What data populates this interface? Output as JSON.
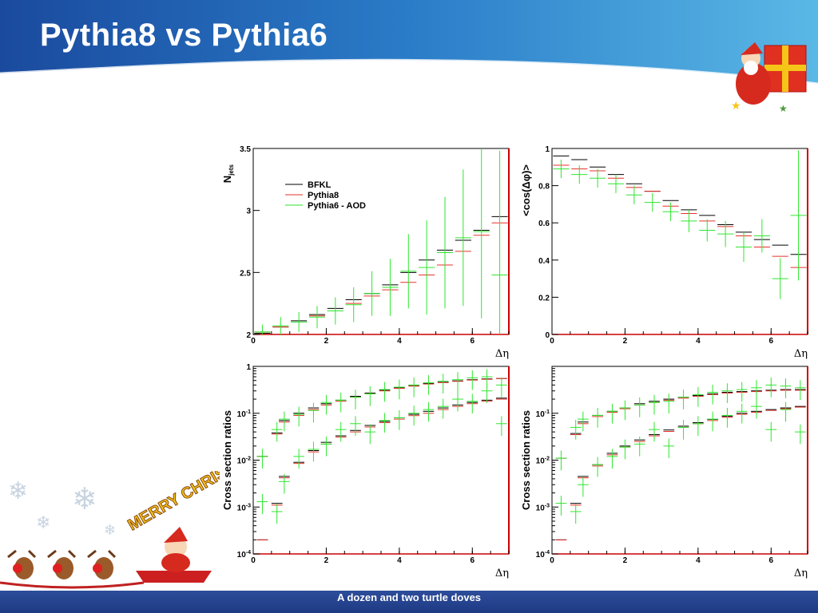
{
  "slide": {
    "title": "Pythia8 vs Pythia6",
    "footer": "A dozen and two turtle doves",
    "decoration": {
      "christmas_banner": "MERRY CHRISTMAS"
    }
  },
  "colors": {
    "BFKL": "#000000",
    "Pythia8": "#e8302a",
    "Pythia6": "#2ee62e",
    "frame_right": "#cc0000"
  },
  "chart_data": [
    {
      "id": "njets",
      "type": "line",
      "ylabel": "N_jets",
      "xlabel": "Δη",
      "xlim": [
        0,
        7
      ],
      "ylim": [
        2,
        3.5
      ],
      "yscale": "linear",
      "xticks": [
        0,
        2,
        4,
        6
      ],
      "yticks": [
        2,
        2.5,
        3,
        3.5
      ],
      "legend": {
        "position": "top-left",
        "entries": [
          "BFKL",
          "Pythia8",
          "Pythia6 - AOD"
        ]
      },
      "x": [
        0.25,
        0.75,
        1.25,
        1.75,
        2.25,
        2.75,
        3.25,
        3.75,
        4.25,
        4.75,
        5.25,
        5.75,
        6.25,
        6.75
      ],
      "series": [
        {
          "name": "BFKL",
          "values": [
            2.01,
            2.06,
            2.11,
            2.16,
            2.21,
            2.28,
            2.33,
            2.4,
            2.5,
            2.6,
            2.68,
            2.76,
            2.84,
            2.95
          ]
        },
        {
          "name": "Pythia8",
          "values": [
            2.02,
            2.06,
            2.1,
            2.15,
            2.19,
            2.25,
            2.31,
            2.36,
            2.42,
            2.48,
            2.56,
            2.67,
            2.8,
            2.9
          ]
        },
        {
          "name": "Pythia6 - AOD",
          "values": [
            2.02,
            2.07,
            2.1,
            2.14,
            2.19,
            2.24,
            2.33,
            2.38,
            2.51,
            2.54,
            2.66,
            2.78,
            2.83,
            2.48
          ],
          "errors": [
            0.06,
            0.07,
            0.08,
            0.09,
            0.11,
            0.14,
            0.18,
            0.23,
            0.3,
            0.38,
            0.45,
            0.55,
            0.7,
            1.0
          ]
        }
      ]
    },
    {
      "id": "cosdphi",
      "type": "line",
      "ylabel": "<cos(Δφ)>",
      "xlabel": "Δη",
      "xlim": [
        0,
        7
      ],
      "ylim": [
        0,
        1
      ],
      "yscale": "linear",
      "xticks": [
        0,
        2,
        4,
        6
      ],
      "yticks": [
        0,
        0.2,
        0.4,
        0.6,
        0.8,
        1
      ],
      "x": [
        0.25,
        0.75,
        1.25,
        1.75,
        2.25,
        2.75,
        3.25,
        3.75,
        4.25,
        4.75,
        5.25,
        5.75,
        6.25,
        6.75
      ],
      "series": [
        {
          "name": "BFKL",
          "values": [
            0.96,
            0.94,
            0.9,
            0.86,
            0.81,
            0.77,
            0.72,
            0.67,
            0.64,
            0.59,
            0.55,
            0.51,
            0.48,
            0.43
          ]
        },
        {
          "name": "Pythia8",
          "values": [
            0.91,
            0.89,
            0.88,
            0.84,
            0.79,
            0.77,
            0.69,
            0.65,
            0.61,
            0.58,
            0.53,
            0.47,
            0.42,
            0.36
          ]
        },
        {
          "name": "Pythia6 - AOD",
          "values": [
            0.89,
            0.86,
            0.84,
            0.81,
            0.75,
            0.71,
            0.66,
            0.61,
            0.56,
            0.54,
            0.47,
            0.53,
            0.3,
            0.64
          ],
          "errors": [
            0.05,
            0.05,
            0.05,
            0.05,
            0.05,
            0.05,
            0.05,
            0.06,
            0.06,
            0.07,
            0.08,
            0.09,
            0.11,
            0.35
          ]
        }
      ]
    },
    {
      "id": "xsec-left",
      "type": "line",
      "ylabel": "Cross section ratios",
      "xlabel": "Δη",
      "xlim": [
        0,
        7
      ],
      "ylim": [
        0.0001,
        1
      ],
      "yscale": "log",
      "xticks": [
        0,
        2,
        4,
        6
      ],
      "yticks": [
        0.0001,
        0.001,
        0.01,
        0.1,
        1
      ],
      "ytick_labels": [
        "10-4",
        "10-3",
        "10-2",
        "10-1",
        "1"
      ],
      "x": [
        0.25,
        0.65,
        0.85,
        1.25,
        1.65,
        2.0,
        2.4,
        2.8,
        3.2,
        3.6,
        4.0,
        4.4,
        4.8,
        5.2,
        5.6,
        6.0,
        6.4,
        6.8
      ],
      "series": [
        {
          "name": "BFKL upper",
          "values": [
            0.012,
            0.038,
            0.07,
            0.1,
            0.13,
            0.16,
            0.19,
            0.23,
            0.27,
            0.31,
            0.35,
            0.39,
            0.43,
            0.46,
            0.49,
            0.52,
            0.54,
            0.55
          ]
        },
        {
          "name": "Pythia8 upper",
          "values": [
            0.012,
            0.036,
            0.065,
            0.09,
            0.12,
            0.15,
            0.18,
            0.22,
            0.26,
            0.3,
            0.34,
            0.38,
            0.42,
            0.45,
            0.48,
            0.51,
            0.53,
            0.55
          ]
        },
        {
          "name": "Pythia6 upper",
          "values": [
            0.012,
            0.045,
            0.075,
            0.095,
            0.115,
            0.17,
            0.19,
            0.22,
            0.26,
            0.32,
            0.36,
            0.4,
            0.45,
            0.48,
            0.52,
            0.57,
            0.6,
            0.4
          ]
        },
        {
          "name": "BFKL lower",
          "values": [
            0.0002,
            0.0012,
            0.0045,
            0.009,
            0.016,
            0.024,
            0.033,
            0.043,
            0.055,
            0.067,
            0.08,
            0.095,
            0.11,
            0.13,
            0.15,
            0.17,
            0.19,
            0.21
          ]
        },
        {
          "name": "Pythia8 lower",
          "values": [
            0.0002,
            0.0011,
            0.0042,
            0.0085,
            0.015,
            0.022,
            0.031,
            0.04,
            0.051,
            0.063,
            0.075,
            0.089,
            0.1,
            0.12,
            0.14,
            0.16,
            0.18,
            0.2
          ]
        },
        {
          "name": "Pythia6 lower",
          "values": [
            0.0013,
            0.0008,
            0.0035,
            0.012,
            0.017,
            0.022,
            0.045,
            0.06,
            0.04,
            0.07,
            0.08,
            0.1,
            0.12,
            0.14,
            0.2,
            0.18,
            0.3,
            0.06
          ]
        }
      ]
    },
    {
      "id": "xsec-right",
      "type": "line",
      "ylabel": "Cross section ratios",
      "xlabel": "Δη",
      "xlim": [
        0,
        7
      ],
      "ylim": [
        0.0001,
        1
      ],
      "yscale": "log",
      "xticks": [
        0,
        2,
        4,
        6
      ],
      "yticks": [
        0.0001,
        0.001,
        0.01,
        0.1
      ],
      "ytick_labels": [
        "10-4",
        "10-3",
        "10-2",
        "10-1"
      ],
      "x": [
        0.25,
        0.65,
        0.85,
        1.25,
        1.65,
        2.0,
        2.4,
        2.8,
        3.2,
        3.6,
        4.0,
        4.4,
        4.8,
        5.2,
        5.6,
        6.0,
        6.4,
        6.8
      ],
      "series": [
        {
          "name": "BFKL upper",
          "values": [
            0.011,
            0.037,
            0.065,
            0.09,
            0.11,
            0.13,
            0.16,
            0.18,
            0.2,
            0.22,
            0.24,
            0.26,
            0.28,
            0.29,
            0.3,
            0.31,
            0.32,
            0.32
          ]
        },
        {
          "name": "Pythia8 upper",
          "values": [
            0.011,
            0.035,
            0.06,
            0.085,
            0.105,
            0.125,
            0.15,
            0.17,
            0.19,
            0.21,
            0.23,
            0.25,
            0.27,
            0.28,
            0.29,
            0.3,
            0.31,
            0.31
          ]
        },
        {
          "name": "Pythia6 upper",
          "values": [
            0.011,
            0.05,
            0.075,
            0.09,
            0.11,
            0.13,
            0.15,
            0.17,
            0.18,
            0.22,
            0.25,
            0.28,
            0.3,
            0.32,
            0.35,
            0.4,
            0.38,
            0.35
          ]
        },
        {
          "name": "BFKL lower",
          "values": [
            0.0002,
            0.0012,
            0.0045,
            0.008,
            0.014,
            0.02,
            0.027,
            0.035,
            0.044,
            0.053,
            0.063,
            0.074,
            0.086,
            0.1,
            0.11,
            0.12,
            0.13,
            0.14
          ]
        },
        {
          "name": "Pythia8 lower",
          "values": [
            0.0002,
            0.0011,
            0.0042,
            0.0075,
            0.013,
            0.019,
            0.025,
            0.033,
            0.041,
            0.05,
            0.06,
            0.07,
            0.082,
            0.095,
            0.105,
            0.115,
            0.125,
            0.135
          ]
        },
        {
          "name": "Pythia6 lower",
          "values": [
            0.0012,
            0.0008,
            0.003,
            0.008,
            0.012,
            0.019,
            0.022,
            0.045,
            0.02,
            0.05,
            0.06,
            0.075,
            0.09,
            0.11,
            0.14,
            0.045,
            0.12,
            0.04
          ]
        }
      ]
    }
  ]
}
